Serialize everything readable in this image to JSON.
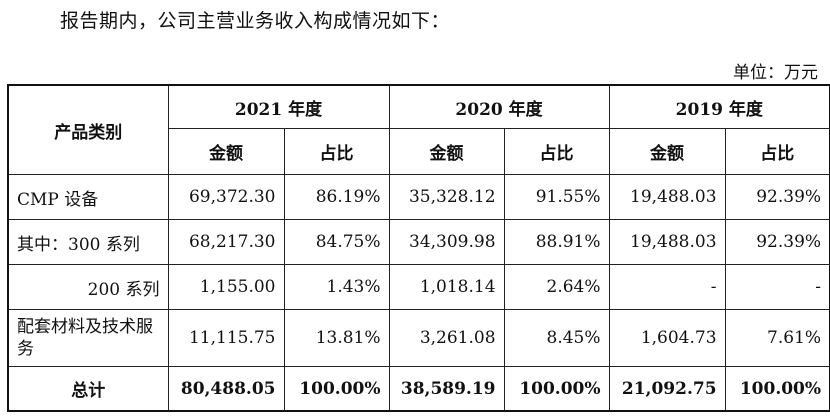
{
  "intro": "报告期内，公司主营业务收入构成情况如下：",
  "unit": "单位：万元",
  "table": {
    "category_header": "产品类别",
    "years": [
      "2021 年度",
      "2020 年度",
      "2019 年度"
    ],
    "sub_headers": {
      "amount": "金额",
      "ratio": "占比"
    },
    "rows": [
      {
        "label": "CMP 设备",
        "cells": [
          "69,372.30",
          "86.19%",
          "35,328.12",
          "91.55%",
          "19,488.03",
          "92.39%"
        ]
      },
      {
        "label": "其中：300 系列",
        "cells": [
          "68,217.30",
          "84.75%",
          "34,309.98",
          "88.91%",
          "19,488.03",
          "92.39%"
        ]
      },
      {
        "label": "200 系列",
        "cells": [
          "1,155.00",
          "1.43%",
          "1,018.14",
          "2.64%",
          "-",
          "-"
        ]
      },
      {
        "label": "配套材料及技术服务",
        "cells": [
          "11,115.75",
          "13.81%",
          "3,261.08",
          "8.45%",
          "1,604.73",
          "7.61%"
        ]
      }
    ],
    "total": {
      "label": "总计",
      "cells": [
        "80,488.05",
        "100.00%",
        "38,589.19",
        "100.00%",
        "21,092.75",
        "100.00%"
      ]
    }
  }
}
